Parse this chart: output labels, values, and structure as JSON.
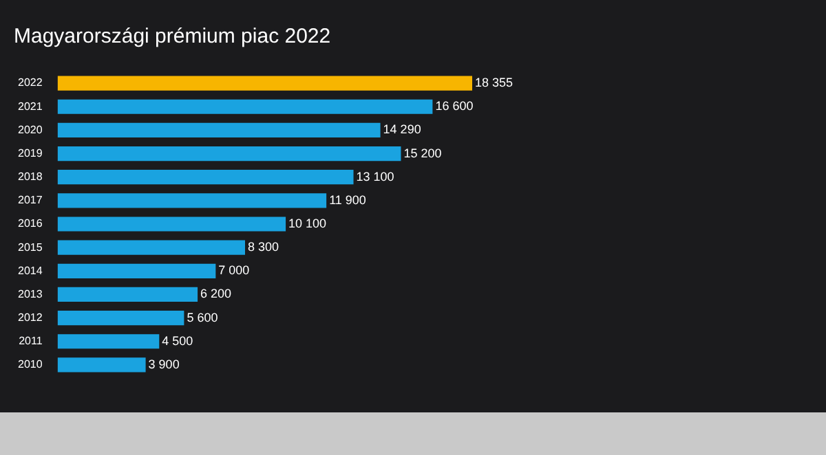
{
  "chart_data": {
    "type": "bar",
    "orientation": "horizontal",
    "title": "Magyarországi prémium piac 2022",
    "categories": [
      "2022",
      "2021",
      "2020",
      "2019",
      "2018",
      "2017",
      "2016",
      "2015",
      "2014",
      "2013",
      "2012",
      "2011",
      "2010"
    ],
    "values": [
      18355,
      16600,
      14290,
      15200,
      13100,
      11900,
      10100,
      8300,
      7000,
      6200,
      5600,
      4500,
      3900
    ],
    "colors": [
      "#f7b500",
      "#1aa3e0",
      "#1aa3e0",
      "#1aa3e0",
      "#1aa3e0",
      "#1aa3e0",
      "#1aa3e0",
      "#1aa3e0",
      "#1aa3e0",
      "#1aa3e0",
      "#1aa3e0",
      "#1aa3e0",
      "#1aa3e0"
    ],
    "value_labels": [
      "18 355",
      "16 600",
      "14 290",
      "15 200",
      "13 100",
      "11 900",
      "10 100",
      "8 300",
      "7 000",
      "6 200",
      "5 600",
      "4 500",
      "3 900"
    ],
    "legend": false
  }
}
